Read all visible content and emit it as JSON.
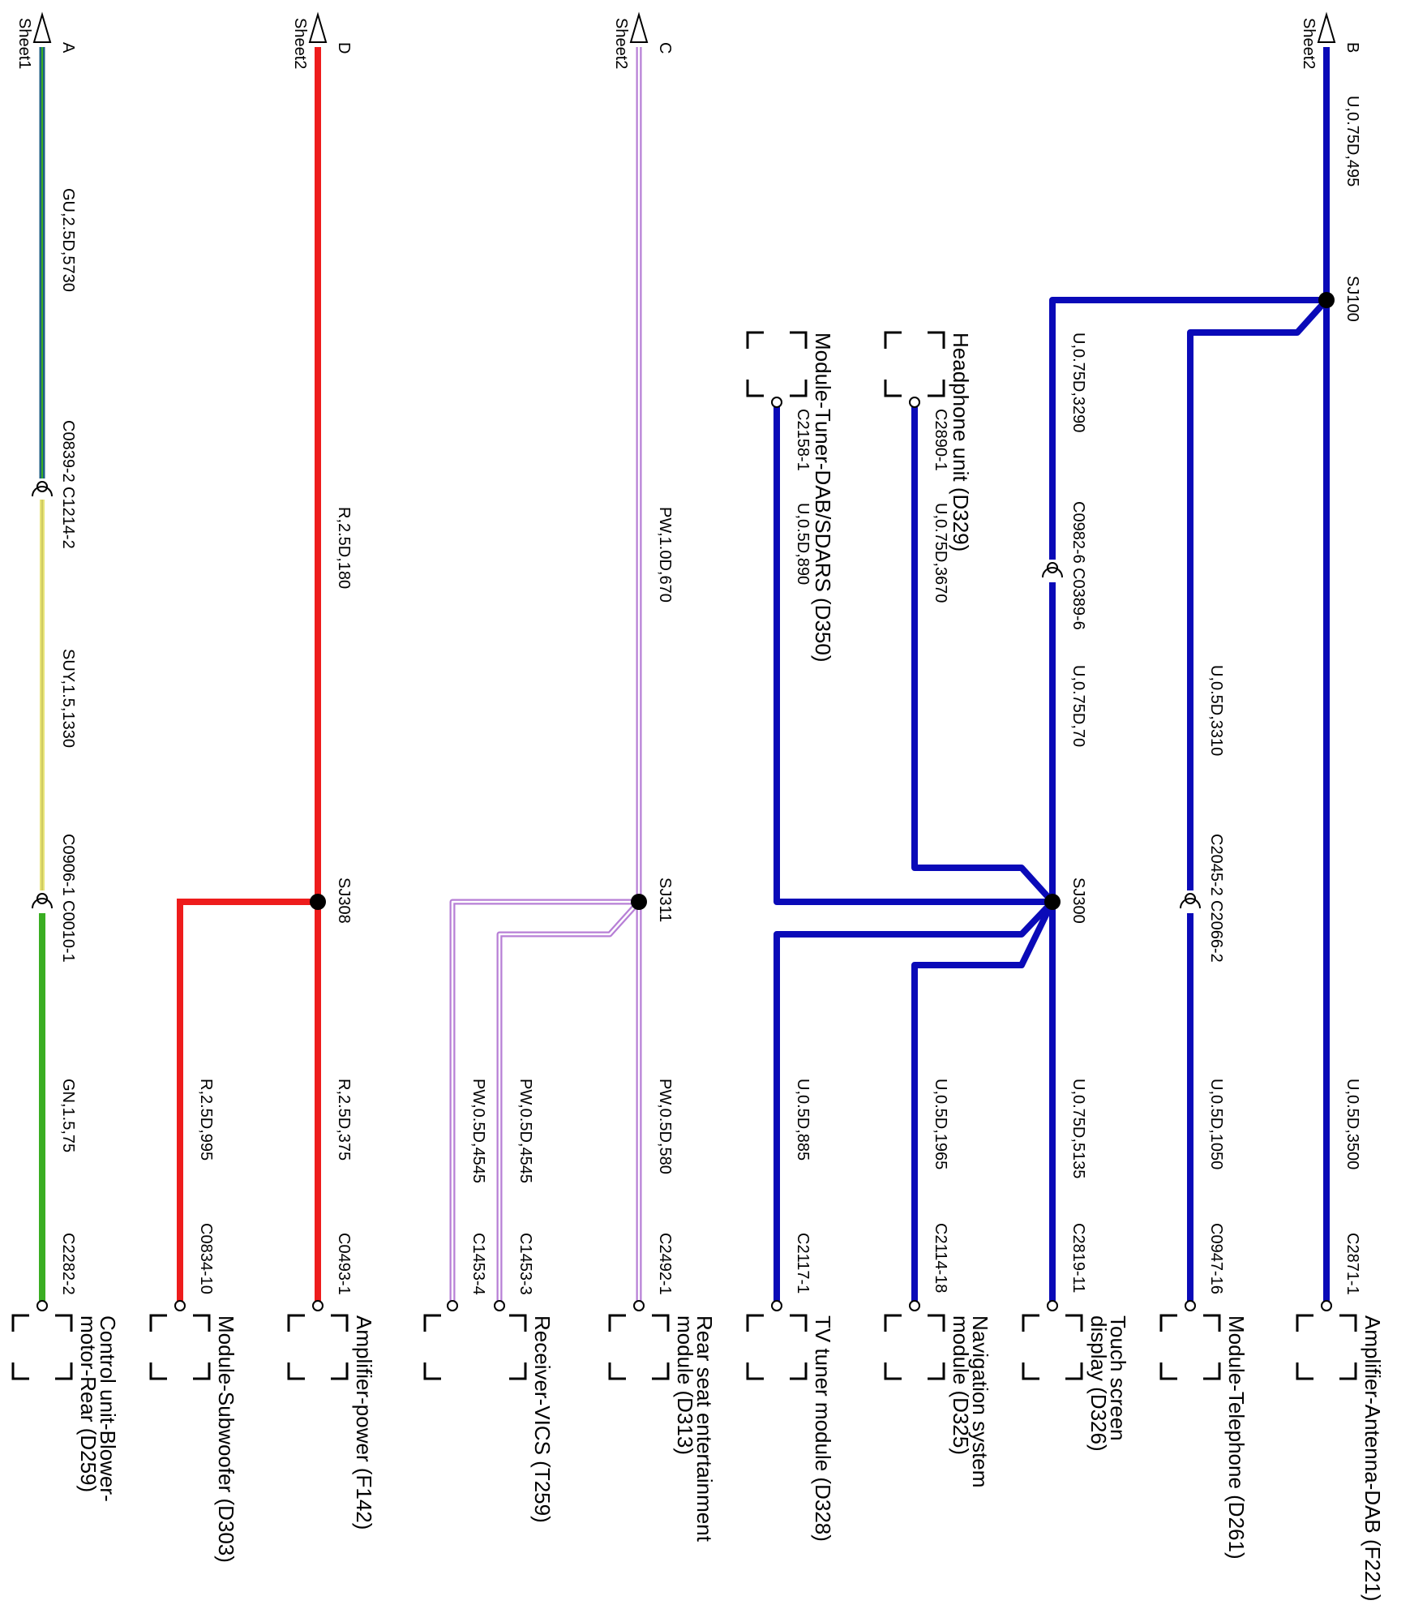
{
  "colors": {
    "blue": "#0a0ab8",
    "red": "#ee1c1c",
    "purple": "#b77fd6",
    "green": "#3aae22",
    "teal": "#1c5e86",
    "yellow": "#e8e478",
    "black": "#000000"
  },
  "sheet_refs": [
    {
      "letter": "B",
      "sheet": "Sheet2"
    },
    {
      "letter": "C",
      "sheet": "Sheet2"
    },
    {
      "letter": "D",
      "sheet": "Sheet2"
    },
    {
      "letter": "A",
      "sheet": "Sheet1"
    }
  ],
  "splices": {
    "sj100": "SJ100",
    "sj300": "SJ300",
    "sj311": "SJ311",
    "sj308": "SJ308"
  },
  "wires": {
    "b_main": "U,0.75D,495",
    "touch_upper": "U,0.75D,3290",
    "touch_mid": "U,0.75D,70",
    "tel_upper": "U,0.5D,3310",
    "headphone": "U,0.75D,3670",
    "tuner_dab": "U,0.5D,890",
    "amp_antenna": "U,0.5D,3500",
    "telephone": "U,0.5D,1050",
    "touch_lower": "U,0.75D,5135",
    "navigation": "U,0.5D,1965",
    "tv_tuner": "U,0.5D,885",
    "c_main": "PW,1.0D,670",
    "rear_seat": "PW,0.5D,580",
    "vics_3": "PW,0.5D,4545",
    "vics_4": "PW,0.5D,4545",
    "d_main": "R,2.5D,180",
    "amp_power": "R,2.5D,375",
    "subwoofer": "R,2.5D,995",
    "a_upper": "GU,2.5D,5730",
    "a_mid": "SUY,1.5,1330",
    "a_lower": "GN,1.5,75"
  },
  "connectors": {
    "c0982_6": "C0982-6",
    "c0389_6": "C0389-6",
    "c2045_2": "C2045-2",
    "c2066_2": "C2066-2",
    "c2890_1": "C2890-1",
    "c2158_1": "C2158-1",
    "c2871_1": "C2871-1",
    "c0947_16": "C0947-16",
    "c2819_11": "C2819-11",
    "c2114_18": "C2114-18",
    "c2117_1": "C2117-1",
    "c2492_1": "C2492-1",
    "c1453_3": "C1453-3",
    "c1453_4": "C1453-4",
    "c0493_1": "C0493-1",
    "c0834_10": "C0834-10",
    "c0839_2": "C0839-2",
    "c1214_2": "C1214-2",
    "c0906_1": "C0906-1",
    "c0010_1": "C0010-1",
    "c2282_2": "C2282-2"
  },
  "components": {
    "headphone": [
      "Headphone unit (D329)"
    ],
    "tuner_dab": [
      "Module-Tuner-DAB/SDARS (D350)"
    ],
    "amp_antenna": [
      "Amplifier-Antenna-DAB (F221)"
    ],
    "telephone": [
      "Module-Telephone (D261)"
    ],
    "touch": [
      "Touch screen",
      "display (D326)"
    ],
    "navigation": [
      "Navigation system",
      "module (D325)"
    ],
    "tv_tuner": [
      "TV tuner module (D328)"
    ],
    "rear_seat": [
      "Rear seat entertainment",
      "module (D313)"
    ],
    "vics": [
      "Receiver-VICS (T259)"
    ],
    "amp_power": [
      "Amplifier-power (F142)"
    ],
    "subwoofer": [
      "Module-Subwoofer (D303)"
    ],
    "blower": [
      "Control unit-Blower-",
      "motor-Rear (D259)"
    ]
  }
}
